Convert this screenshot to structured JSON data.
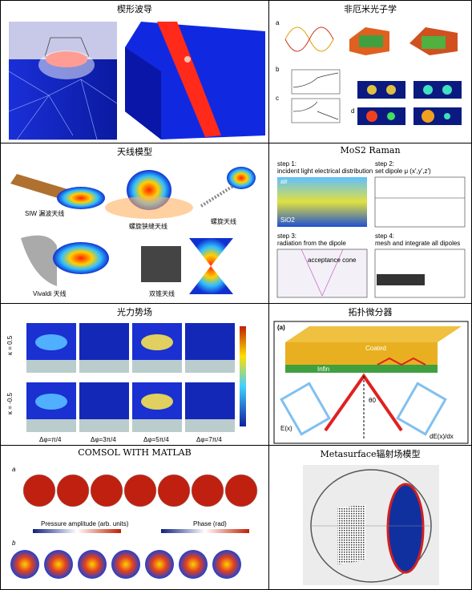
{
  "cells": [
    {
      "caption": "楔形波导",
      "labels": []
    },
    {
      "caption": "非厄米光子学",
      "labels": [
        "a",
        "b",
        "c",
        "d"
      ]
    },
    {
      "caption": "天线模型",
      "labels": [
        "SIW 漏波天线",
        "螺旋狭缝天线",
        "螺旋天线",
        "Vivaldi 天线",
        "双锥天线"
      ]
    },
    {
      "caption": "MoS2 Raman",
      "labels": [
        "step 1:",
        "incident light electrical distribution",
        "step 2:",
        "set dipole μ (x',y',z')",
        "step 3:",
        "radiation from the dipole",
        "step 4:",
        "mesh and integrate all dipoles",
        "air",
        "SiO2",
        "acceptance cone"
      ]
    },
    {
      "caption": "光力势场",
      "labels": [
        "κ = 0.5",
        "κ = -0.5",
        "Δφ=π/4",
        "Δφ=3π/4",
        "Δφ=5π/4",
        "Δφ=7π/4"
      ]
    },
    {
      "caption": "拓扑微分器",
      "labels": [
        "(a)",
        "Coated",
        "Infin",
        "E(x)",
        "dE(x)/dx",
        "θ0"
      ]
    },
    {
      "caption": "COMSOL WITH MATLAB",
      "labels": [
        "a",
        "b",
        "Pressure amplitude (arb. units)",
        "Phase (rad)"
      ]
    },
    {
      "caption": "Metasurface辐射场模型",
      "labels": []
    }
  ]
}
